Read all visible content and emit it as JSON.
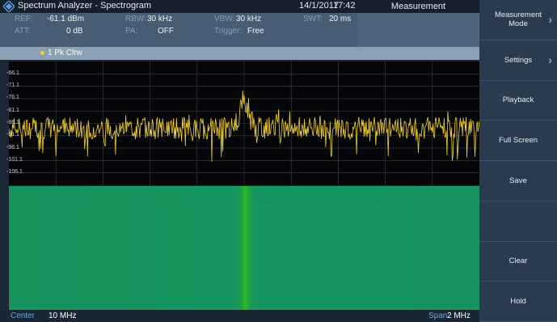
{
  "title_bar": {
    "app_title": "Spectrum Analyzer - Spectrogram",
    "date": "14/1/2017",
    "time": "17:42",
    "mode": "Measurement"
  },
  "params": {
    "ref_label": "REF:",
    "ref_value": "-61.1 dBm",
    "att_label": "ATT:",
    "att_value": "0 dB",
    "rbw_label": "RBW:",
    "rbw_value": "30 kHz",
    "pa_label": "PA:",
    "pa_value": "OFF",
    "vbw_label": "VBW:",
    "vbw_value": "30 kHz",
    "trigger_label": "Trigger:",
    "trigger_value": "Free",
    "swt_label": "SWT:",
    "swt_value": "20 ms"
  },
  "trace": {
    "label": "1 Pk Clrw",
    "color": "#f4d223"
  },
  "chart_data": {
    "type": "line",
    "title": "",
    "xlabel": "",
    "ylabel": "",
    "xlim": [
      5,
      15
    ],
    "ylim": [
      -111.1,
      -61.1
    ],
    "y_ticks": [
      "-66.1",
      "-71.1",
      "-76.1",
      "-81.1",
      "-86.1",
      "-91.1",
      "-96.1",
      "-101.1",
      "-106.1"
    ],
    "grid": true,
    "series": [
      {
        "color": "#f4d223",
        "noise_floor": -88.0,
        "peak_x": 10,
        "peak_y": -78.5
      }
    ]
  },
  "status": {
    "center_label": "Center",
    "center_value": "10 MHz",
    "span_label": "Span",
    "span_value": "2 MHz"
  },
  "softkeys": [
    {
      "label": "Measurement Mode",
      "chevron": true
    },
    {
      "label": "Settings",
      "chevron": true
    },
    {
      "label": "Playback",
      "chevron": false
    },
    {
      "label": "Full Screen",
      "chevron": false
    },
    {
      "label": "Save",
      "chevron": false
    },
    {
      "label": "",
      "chevron": false
    },
    {
      "label": "Clear",
      "chevron": false
    },
    {
      "label": "Hold",
      "chevron": false
    }
  ]
}
